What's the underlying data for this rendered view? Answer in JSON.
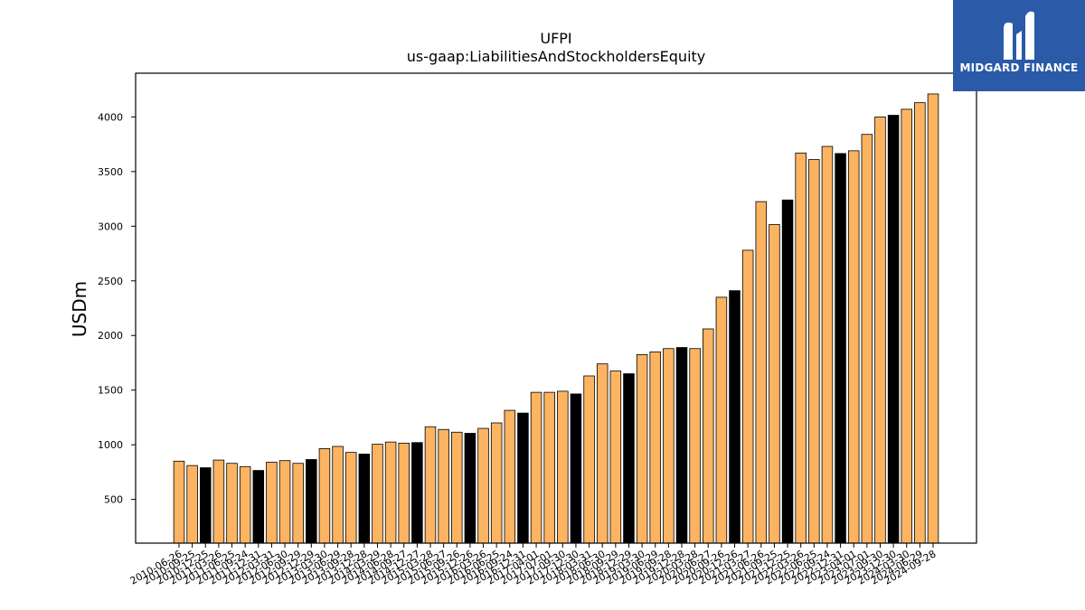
{
  "brand": {
    "name": "MIDGARD FINANCE",
    "bg_color": "#2a5aa8"
  },
  "chart_data": {
    "type": "bar",
    "title": "UFPI",
    "subtitle": "us-gaap:LiabilitiesAndStockholdersEquity",
    "xlabel": "",
    "ylabel": "USDm",
    "ylim": [
      100,
      4400
    ],
    "yticks": [
      500,
      1000,
      1500,
      2000,
      2500,
      3000,
      3500,
      4000
    ],
    "grid": false,
    "colors": {
      "quarterly": "#fdb462",
      "annual": "#000000",
      "edge": "#000000"
    },
    "categories": [
      "2010-06-26",
      "2010-09-25",
      "2010-12-25",
      "2011-03-26",
      "2011-06-25",
      "2011-09-24",
      "2011-12-31",
      "2012-03-31",
      "2012-06-30",
      "2012-09-29",
      "2012-12-29",
      "2013-03-30",
      "2013-06-29",
      "2013-09-28",
      "2013-12-28",
      "2014-03-29",
      "2014-06-28",
      "2014-09-27",
      "2014-12-27",
      "2015-03-28",
      "2015-06-27",
      "2015-09-26",
      "2015-12-26",
      "2016-03-26",
      "2016-06-25",
      "2016-09-24",
      "2016-12-31",
      "2017-04-01",
      "2017-07-01",
      "2017-09-30",
      "2017-12-30",
      "2018-03-31",
      "2018-06-30",
      "2018-09-29",
      "2018-12-29",
      "2019-03-30",
      "2019-06-29",
      "2019-09-28",
      "2019-12-28",
      "2020-03-28",
      "2020-06-27",
      "2020-09-26",
      "2020-12-26",
      "2021-03-27",
      "2021-06-26",
      "2021-09-25",
      "2021-12-25",
      "2022-03-26",
      "2022-06-25",
      "2022-09-24",
      "2022-12-31",
      "2023-04-01",
      "2023-07-01",
      "2023-09-30",
      "2023-12-30",
      "2024-03-30",
      "2024-06-29",
      "2024-09-28"
    ],
    "values": [
      850,
      810,
      790,
      860,
      830,
      800,
      765,
      840,
      855,
      830,
      865,
      965,
      985,
      930,
      915,
      1005,
      1025,
      1015,
      1020,
      1165,
      1140,
      1115,
      1105,
      1150,
      1200,
      1315,
      1290,
      1480,
      1480,
      1490,
      1465,
      1630,
      1740,
      1675,
      1650,
      1825,
      1850,
      1880,
      1890,
      1880,
      2060,
      2350,
      2410,
      2780,
      3225,
      3015,
      3240,
      3670,
      3610,
      3730,
      3665,
      3690,
      3840,
      4000,
      4015,
      4070,
      4130,
      4210
    ],
    "annual": [
      false,
      false,
      true,
      false,
      false,
      false,
      true,
      false,
      false,
      false,
      true,
      false,
      false,
      false,
      true,
      false,
      false,
      false,
      true,
      false,
      false,
      false,
      true,
      false,
      false,
      false,
      true,
      false,
      false,
      false,
      true,
      false,
      false,
      false,
      true,
      false,
      false,
      false,
      true,
      false,
      false,
      false,
      true,
      false,
      false,
      false,
      true,
      false,
      false,
      false,
      true,
      false,
      false,
      false,
      true,
      false,
      false,
      false
    ]
  }
}
